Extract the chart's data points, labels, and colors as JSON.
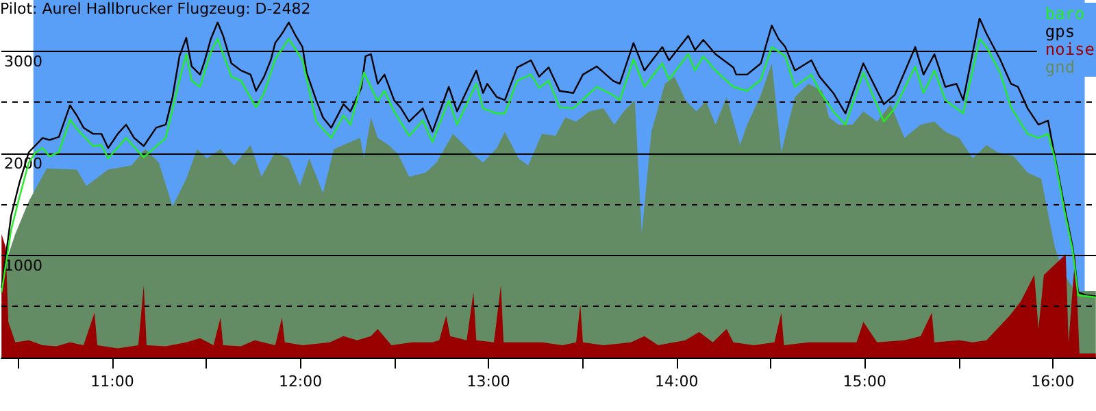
{
  "chart_data": {
    "type": "line",
    "title": "Pilot: Aurel Hallbrucker Flugzeug: D-2482",
    "xlim": [
      10.41,
      16.23
    ],
    "xticks": [
      {
        "value": 10.5,
        "label": null
      },
      {
        "value": 11,
        "label": "11:00"
      },
      {
        "value": 11.5,
        "label": null
      },
      {
        "value": 12,
        "label": "12:00"
      },
      {
        "value": 12.5,
        "label": null
      },
      {
        "value": 13,
        "label": "13:00"
      },
      {
        "value": 13.5,
        "label": null
      },
      {
        "value": 14,
        "label": "14:00"
      },
      {
        "value": 14.5,
        "label": null
      },
      {
        "value": 15,
        "label": "15:00"
      },
      {
        "value": 15.5,
        "label": null
      },
      {
        "value": 16,
        "label": "16:00"
      }
    ],
    "ylim": [
      0,
      3500
    ],
    "yticks": [
      {
        "value": 500,
        "label": null
      },
      1000,
      {
        "value": 1500,
        "label": null
      },
      2000,
      {
        "value": 2500,
        "label": null
      },
      3000
    ],
    "bands": [
      {
        "axis": "x",
        "from": 10.58,
        "to": 16.17,
        "label": null,
        "color": "#5a9ff7"
      }
    ],
    "grid": "y",
    "legend": "top right",
    "marker": "none",
    "line_style": "solid",
    "series": [
      {
        "name": "baro",
        "color": "#22ee22",
        "x": [
          10.411,
          10.462,
          10.506,
          10.556,
          10.593,
          10.629,
          10.666,
          10.716,
          10.775,
          10.811,
          10.898,
          10.942,
          10.978,
          11.073,
          11.167,
          11.284,
          11.357,
          11.393,
          11.422,
          11.466,
          11.524,
          11.56,
          11.633,
          11.684,
          11.764,
          11.807,
          11.866,
          11.938,
          12.011,
          12.084,
          12.164,
          12.229,
          12.266,
          12.338,
          12.411,
          12.447,
          12.498,
          12.578,
          12.651,
          12.702,
          12.789,
          12.833,
          12.935,
          12.971,
          13.044,
          13.087,
          13.153,
          13.226,
          13.269,
          13.32,
          13.378,
          13.451,
          13.575,
          13.662,
          13.698,
          13.771,
          13.829,
          13.924,
          13.96,
          14.062,
          14.098,
          14.142,
          14.207,
          14.302,
          14.375,
          14.448,
          14.506,
          14.578,
          14.629,
          14.717,
          14.76,
          14.833,
          14.898,
          14.993,
          15.102,
          15.16,
          15.269,
          15.313,
          15.371,
          15.429,
          15.524,
          15.611,
          15.648,
          15.72,
          15.778,
          15.866,
          15.924,
          15.975,
          16.011,
          16.062,
          16.106,
          16.135,
          16.229
        ],
        "values": [
          640,
          1250,
          1570,
          1910,
          2010,
          2050,
          1970,
          2010,
          2330,
          2240,
          2070,
          2080,
          1950,
          2150,
          1960,
          2150,
          2720,
          2970,
          2710,
          2650,
          2990,
          3120,
          2750,
          2710,
          2450,
          2590,
          2920,
          3120,
          2910,
          2310,
          2150,
          2370,
          2280,
          2790,
          2510,
          2610,
          2410,
          2170,
          2320,
          2110,
          2520,
          2280,
          2680,
          2440,
          2390,
          2390,
          2710,
          2770,
          2640,
          2710,
          2450,
          2440,
          2650,
          2570,
          2520,
          2920,
          2650,
          2880,
          2720,
          2970,
          2810,
          2950,
          2810,
          2650,
          2610,
          2720,
          3040,
          2950,
          2650,
          2770,
          2610,
          2410,
          2280,
          2790,
          2310,
          2440,
          2850,
          2590,
          2810,
          2520,
          2390,
          3120,
          3040,
          2790,
          2450,
          2190,
          2150,
          2190,
          1950,
          1440,
          1050,
          610,
          590
        ]
      },
      {
        "name": "gps",
        "color": "#000000",
        "x": [
          10.411,
          10.462,
          10.506,
          10.556,
          10.593,
          10.629,
          10.666,
          10.716,
          10.775,
          10.811,
          10.847,
          10.898,
          10.942,
          10.978,
          11.029,
          11.073,
          11.116,
          11.167,
          11.233,
          11.284,
          11.32,
          11.357,
          11.393,
          11.422,
          11.466,
          11.487,
          11.524,
          11.56,
          11.589,
          11.633,
          11.684,
          11.735,
          11.764,
          11.807,
          11.844,
          11.866,
          11.902,
          11.938,
          11.975,
          12.011,
          12.033,
          12.084,
          12.12,
          12.164,
          12.229,
          12.266,
          12.324,
          12.346,
          12.375,
          12.411,
          12.447,
          12.498,
          12.535,
          12.578,
          12.651,
          12.702,
          12.789,
          12.833,
          12.935,
          12.971,
          12.993,
          13.044,
          13.087,
          13.153,
          13.226,
          13.269,
          13.32,
          13.378,
          13.451,
          13.502,
          13.575,
          13.662,
          13.698,
          13.771,
          13.829,
          13.924,
          13.96,
          14.062,
          14.098,
          14.142,
          14.207,
          14.302,
          14.317,
          14.375,
          14.448,
          14.506,
          14.542,
          14.578,
          14.629,
          14.717,
          14.76,
          14.833,
          14.898,
          14.993,
          15.102,
          15.16,
          15.269,
          15.313,
          15.371,
          15.429,
          15.488,
          15.524,
          15.611,
          15.648,
          15.72,
          15.778,
          15.815,
          15.866,
          15.924,
          15.975,
          16.011,
          16.062,
          16.106,
          16.135,
          16.179,
          16.229
        ],
        "values": [
          680,
          1390,
          1710,
          2010,
          2080,
          2150,
          2130,
          2160,
          2470,
          2370,
          2250,
          2190,
          2190,
          2050,
          2190,
          2280,
          2150,
          2070,
          2250,
          2280,
          2550,
          2950,
          3130,
          2850,
          2770,
          2880,
          3120,
          3280,
          3150,
          2880,
          2810,
          2770,
          2610,
          2750,
          2920,
          3080,
          3170,
          3280,
          3150,
          3040,
          2790,
          2520,
          2350,
          2250,
          2480,
          2410,
          2640,
          2950,
          2970,
          2680,
          2770,
          2520,
          2440,
          2310,
          2440,
          2210,
          2650,
          2410,
          2810,
          2590,
          2680,
          2550,
          2520,
          2840,
          2910,
          2750,
          2840,
          2610,
          2590,
          2770,
          2850,
          2710,
          2680,
          3080,
          2810,
          3040,
          2910,
          3150,
          3010,
          3110,
          2970,
          2840,
          2770,
          2770,
          2880,
          3250,
          3120,
          3040,
          2810,
          2910,
          2750,
          2590,
          2390,
          2880,
          2480,
          2570,
          3040,
          2770,
          2970,
          2650,
          2680,
          2520,
          3320,
          3170,
          2920,
          2680,
          2650,
          2440,
          2280,
          2320,
          1970,
          1480,
          1080,
          640,
          610,
          600
        ]
      },
      {
        "name": "noise",
        "type": "area",
        "color": "#990000",
        "x": [
          10.411,
          10.433,
          10.447,
          10.484,
          10.556,
          10.629,
          10.702,
          10.775,
          10.847,
          10.905,
          10.92,
          11.029,
          11.138,
          11.167,
          11.182,
          11.284,
          11.393,
          11.466,
          11.538,
          11.575,
          11.589,
          11.684,
          11.757,
          11.866,
          11.902,
          11.917,
          12.011,
          12.156,
          12.229,
          12.302,
          12.375,
          12.411,
          12.484,
          12.593,
          12.702,
          12.738,
          12.775,
          12.796,
          12.884,
          12.92,
          12.935,
          13.029,
          13.066,
          13.08,
          13.175,
          13.284,
          13.393,
          13.466,
          13.488,
          13.502,
          13.611,
          13.757,
          13.829,
          13.902,
          14.047,
          14.12,
          14.193,
          14.266,
          14.302,
          14.411,
          14.52,
          14.557,
          14.571,
          14.702,
          14.848,
          14.957,
          14.993,
          15.066,
          15.211,
          15.298,
          15.357,
          15.371,
          15.502,
          15.575,
          15.648,
          15.771,
          15.83,
          15.902,
          15.924,
          15.953,
          16.069,
          16.084,
          16.12,
          16.142,
          16.229
        ],
        "values": [
          1210,
          1080,
          350,
          150,
          170,
          120,
          110,
          150,
          120,
          440,
          120,
          90,
          120,
          710,
          120,
          110,
          150,
          190,
          120,
          390,
          120,
          110,
          170,
          120,
          390,
          150,
          120,
          150,
          210,
          170,
          210,
          280,
          120,
          150,
          150,
          170,
          410,
          210,
          170,
          640,
          170,
          150,
          710,
          150,
          150,
          150,
          120,
          150,
          520,
          150,
          120,
          150,
          210,
          120,
          170,
          250,
          150,
          280,
          150,
          120,
          150,
          440,
          120,
          150,
          150,
          150,
          350,
          150,
          170,
          210,
          440,
          150,
          170,
          150,
          170,
          410,
          550,
          810,
          280,
          810,
          1010,
          150,
          1010,
          40,
          40
        ]
      },
      {
        "name": "gnd",
        "type": "area",
        "color": "#648c64",
        "x": [
          10.411,
          10.484,
          10.556,
          10.651,
          10.811,
          10.862,
          10.978,
          11.102,
          11.175,
          11.247,
          11.32,
          11.393,
          11.451,
          11.502,
          11.575,
          11.647,
          11.735,
          11.793,
          11.866,
          11.938,
          11.997,
          12.047,
          12.12,
          12.178,
          12.266,
          12.317,
          12.338,
          12.375,
          12.411,
          12.469,
          12.52,
          12.578,
          12.666,
          12.724,
          12.811,
          12.92,
          12.971,
          13.044,
          13.087,
          13.16,
          13.211,
          13.284,
          13.357,
          13.408,
          13.466,
          13.538,
          13.611,
          13.669,
          13.72,
          13.778,
          13.815,
          13.866,
          13.938,
          13.989,
          14.047,
          14.106,
          14.157,
          14.207,
          14.266,
          14.338,
          14.375,
          14.448,
          14.506,
          14.557,
          14.629,
          14.702,
          14.775,
          14.811,
          14.862,
          14.935,
          14.993,
          15.066,
          15.138,
          15.211,
          15.298,
          15.371,
          15.429,
          15.502,
          15.575,
          15.648,
          15.706,
          15.793,
          15.866,
          15.939,
          16.011,
          16.062,
          16.12,
          16.229
        ],
        "values": [
          810,
          1210,
          1530,
          1850,
          1840,
          1680,
          1840,
          1880,
          2040,
          1910,
          1480,
          1750,
          2040,
          1950,
          2040,
          1880,
          2080,
          1770,
          2010,
          1950,
          1680,
          1950,
          1610,
          2040,
          2110,
          2150,
          1950,
          2350,
          2150,
          2080,
          1990,
          1770,
          1810,
          1910,
          2190,
          1990,
          1910,
          2050,
          2210,
          1950,
          1880,
          2190,
          2170,
          2350,
          2310,
          2410,
          2440,
          2280,
          2410,
          2520,
          1210,
          2210,
          2680,
          2750,
          2520,
          2410,
          2510,
          2280,
          2550,
          2080,
          2280,
          2570,
          2880,
          2010,
          2550,
          2680,
          2610,
          2350,
          2280,
          2280,
          2410,
          2310,
          2480,
          2150,
          2280,
          2310,
          2210,
          2150,
          1950,
          2080,
          2010,
          1970,
          1810,
          1750,
          1080,
          810,
          650,
          650
        ]
      }
    ]
  }
}
